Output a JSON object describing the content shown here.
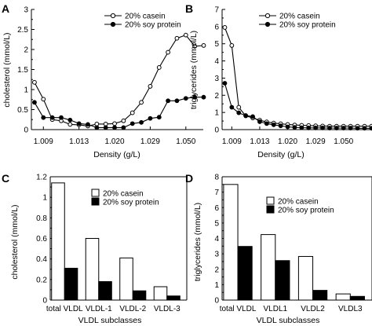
{
  "figure": {
    "panel_letters": [
      "A",
      "B",
      "C",
      "D"
    ]
  },
  "legends": {
    "lines": {
      "casein": "20% casein",
      "soy": "20% soy protein"
    },
    "bars": {
      "casein": "20% casein",
      "soy": "20% soy protein"
    }
  },
  "chart_data": [
    {
      "panel": "A",
      "type": "line",
      "xlabel": "Density (g/L)",
      "ylabel": "cholesterol (mmol/L)",
      "ylim": [
        0,
        3
      ],
      "yticks": [
        "0",
        "0.5",
        "1",
        "1.5",
        "2",
        "2.5",
        "3"
      ],
      "x_tick_labels": [
        "1.009",
        "1.013",
        "1.020",
        "1.029",
        "1.050"
      ],
      "x_tick_fraction_index": [
        1,
        5,
        9,
        13,
        17
      ],
      "legend_position": "top-right",
      "grid": false,
      "series": [
        {
          "name": "20% casein",
          "marker": "open-circle",
          "values": [
            1.18,
            0.76,
            0.25,
            0.22,
            0.13,
            0.12,
            0.09,
            0.14,
            0.14,
            0.15,
            0.22,
            0.42,
            0.68,
            1.08,
            1.55,
            1.93,
            2.28,
            2.36,
            2.08,
            2.1
          ]
        },
        {
          "name": "20% soy protein",
          "marker": "filled-circle",
          "values": [
            0.68,
            0.3,
            0.3,
            0.3,
            0.24,
            0.15,
            0.13,
            0.05,
            0.05,
            0.05,
            0.05,
            0.15,
            0.18,
            0.28,
            0.31,
            0.72,
            0.72,
            0.78,
            0.81,
            0.81
          ]
        }
      ]
    },
    {
      "panel": "B",
      "type": "line",
      "xlabel": "Density (g/L)",
      "ylabel": "triglycerides (mmol/L)",
      "ylim": [
        0,
        7
      ],
      "yticks": [
        "0",
        "1",
        "2",
        "3",
        "4",
        "5",
        "6",
        "7"
      ],
      "x_tick_labels": [
        "1.009",
        "1.013",
        "1.020",
        "1.029",
        "1.050"
      ],
      "x_tick_fraction_index": [
        1,
        5,
        9,
        13,
        17
      ],
      "legend_position": "top-right",
      "grid": false,
      "series": [
        {
          "name": "20% casein",
          "marker": "open-circle",
          "values": [
            5.95,
            4.9,
            1.3,
            0.8,
            0.68,
            0.55,
            0.45,
            0.38,
            0.34,
            0.3,
            0.27,
            0.25,
            0.24,
            0.22,
            0.21,
            0.2,
            0.2,
            0.2,
            0.2,
            0.2,
            0.2,
            0.2
          ]
        },
        {
          "name": "20% soy protein",
          "marker": "filled-circle",
          "values": [
            2.7,
            1.3,
            0.98,
            0.82,
            0.76,
            0.46,
            0.35,
            0.28,
            0.22,
            0.16,
            0.13,
            0.11,
            0.1,
            0.1,
            0.1,
            0.09,
            0.09,
            0.09,
            0.09,
            0.08,
            0.08,
            0.08
          ]
        }
      ]
    },
    {
      "panel": "C",
      "type": "bar",
      "xlabel": "VLDL subclasses",
      "ylabel": "cholesterol (mmol/L)",
      "ylim": [
        0,
        1.2
      ],
      "yticks": [
        "0",
        "0.2",
        "0.4",
        "0.6",
        "0.8",
        "1",
        "1.2"
      ],
      "categories": [
        "total VLDL",
        "VLDL-1",
        "VLDL-2",
        "VLDL-3"
      ],
      "legend_position": "top-right",
      "series": [
        {
          "name": "20% casein",
          "fill": "#ffffff",
          "values": [
            1.14,
            0.6,
            0.41,
            0.13
          ]
        },
        {
          "name": "20% soy protein",
          "fill": "#000000",
          "values": [
            0.31,
            0.18,
            0.09,
            0.04
          ]
        }
      ]
    },
    {
      "panel": "D",
      "type": "bar",
      "xlabel": "VLDL subclasses",
      "ylabel": "triglycerides (mmol/L)",
      "ylim": [
        0,
        8
      ],
      "yticks": [
        "0",
        "1",
        "2",
        "3",
        "4",
        "5",
        "6",
        "7",
        "8"
      ],
      "categories": [
        "total VLDL",
        "VLDL1",
        "VLDL2",
        "VLDL3"
      ],
      "legend_position": "top-right",
      "series": [
        {
          "name": "20% casein",
          "fill": "#ffffff",
          "values": [
            7.5,
            4.25,
            2.83,
            0.4
          ]
        },
        {
          "name": "20% soy protein",
          "fill": "#000000",
          "values": [
            3.48,
            2.56,
            0.63,
            0.24
          ]
        }
      ]
    }
  ]
}
